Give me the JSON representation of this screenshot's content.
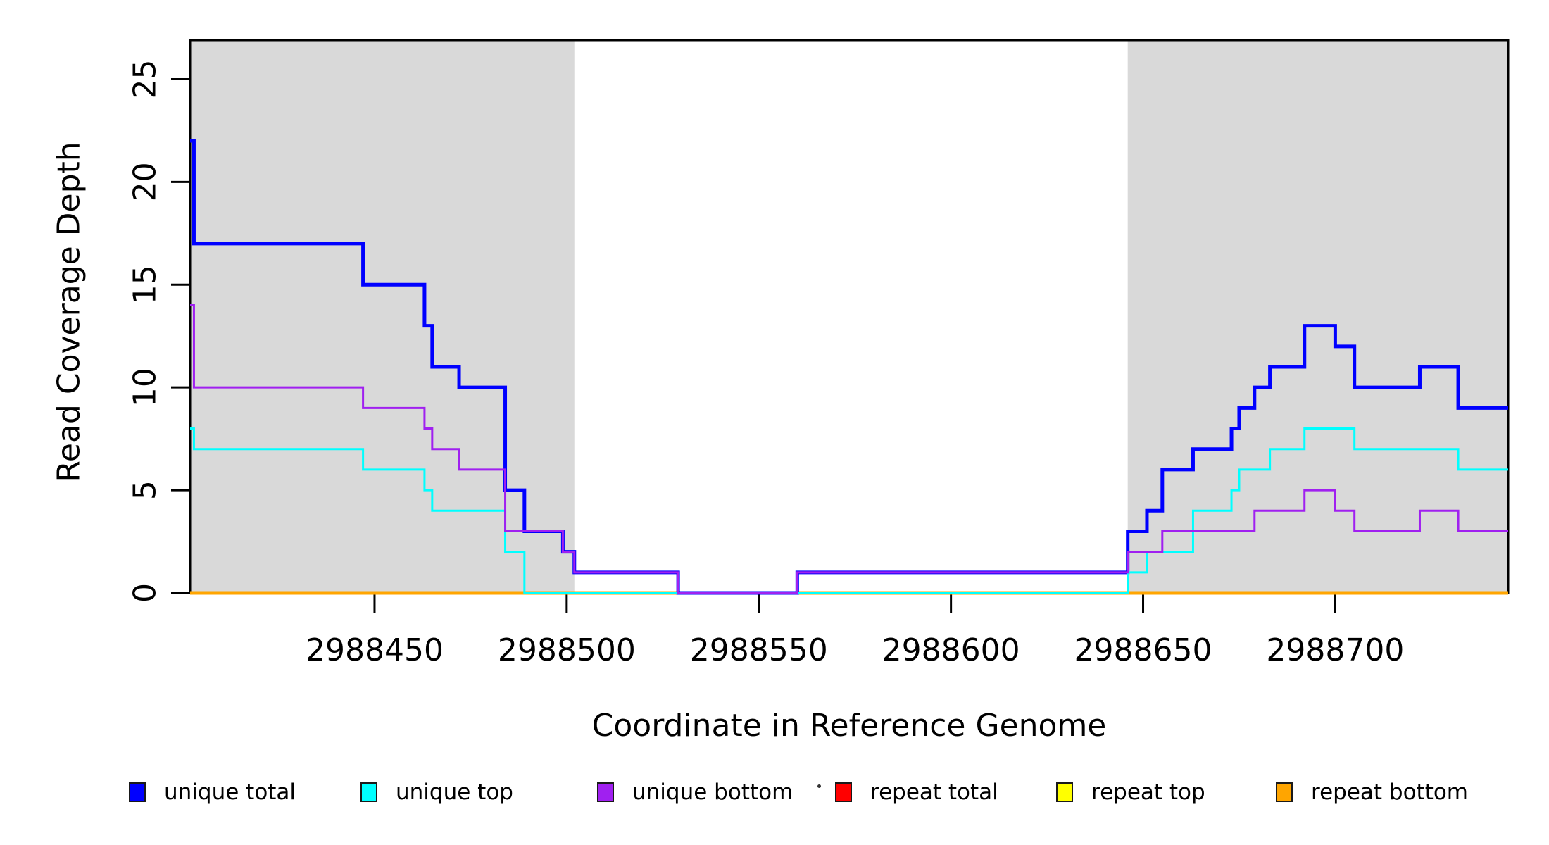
{
  "chart_data": {
    "type": "line",
    "subtype": "step",
    "title": "",
    "xlabel": "Coordinate in Reference Genome",
    "ylabel": "Read Coverage Depth",
    "xlim": [
      2988402,
      2988745
    ],
    "ylim": [
      0,
      26.9
    ],
    "x_ticks": [
      2988450,
      2988500,
      2988550,
      2988600,
      2988650,
      2988700
    ],
    "y_ticks": [
      0,
      5,
      10,
      15,
      20,
      25
    ],
    "grid": false,
    "legend_position": "bottom",
    "shaded_regions": [
      {
        "x_start": 2988402,
        "x_end": 2988502,
        "color": "#d9d9d9"
      },
      {
        "x_start": 2988646,
        "x_end": 2988745,
        "color": "#d9d9d9"
      }
    ],
    "series": [
      {
        "name": "repeat total",
        "color": "#ff0000",
        "line_width": 4,
        "steps": [
          [
            2988402,
            0
          ],
          [
            2988745,
            0
          ]
        ]
      },
      {
        "name": "repeat top",
        "color": "#ffff00",
        "line_width": 4,
        "steps": [
          [
            2988402,
            0
          ],
          [
            2988745,
            0
          ]
        ]
      },
      {
        "name": "repeat bottom",
        "color": "#ffa500",
        "line_width": 5,
        "steps": [
          [
            2988402,
            0
          ],
          [
            2988745,
            0
          ]
        ]
      },
      {
        "name": "unique total",
        "color": "#0000ff",
        "line_width": 5,
        "steps": [
          [
            2988402,
            22
          ],
          [
            2988403,
            17
          ],
          [
            2988447,
            15
          ],
          [
            2988463,
            13
          ],
          [
            2988465,
            11
          ],
          [
            2988472,
            10
          ],
          [
            2988484,
            5
          ],
          [
            2988489,
            3
          ],
          [
            2988499,
            2
          ],
          [
            2988502,
            1
          ],
          [
            2988529,
            0
          ],
          [
            2988560,
            1
          ],
          [
            2988646,
            3
          ],
          [
            2988651,
            4
          ],
          [
            2988655,
            6
          ],
          [
            2988663,
            7
          ],
          [
            2988673,
            8
          ],
          [
            2988675,
            9
          ],
          [
            2988679,
            10
          ],
          [
            2988683,
            11
          ],
          [
            2988692,
            13
          ],
          [
            2988700,
            12
          ],
          [
            2988705,
            10
          ],
          [
            2988722,
            11
          ],
          [
            2988732,
            9
          ],
          [
            2988745,
            9
          ]
        ]
      },
      {
        "name": "unique top",
        "color": "#00ffff",
        "line_width": 3,
        "steps": [
          [
            2988402,
            8
          ],
          [
            2988403,
            7
          ],
          [
            2988447,
            6
          ],
          [
            2988463,
            5
          ],
          [
            2988465,
            4
          ],
          [
            2988484,
            2
          ],
          [
            2988489,
            0
          ],
          [
            2988646,
            1
          ],
          [
            2988651,
            2
          ],
          [
            2988663,
            4
          ],
          [
            2988673,
            5
          ],
          [
            2988675,
            6
          ],
          [
            2988683,
            7
          ],
          [
            2988692,
            8
          ],
          [
            2988705,
            7
          ],
          [
            2988732,
            6
          ],
          [
            2988745,
            6
          ]
        ]
      },
      {
        "name": "unique bottom",
        "color": "#a020f0",
        "line_width": 3,
        "steps": [
          [
            2988402,
            14
          ],
          [
            2988403,
            10
          ],
          [
            2988447,
            9
          ],
          [
            2988463,
            8
          ],
          [
            2988465,
            7
          ],
          [
            2988472,
            6
          ],
          [
            2988484,
            3
          ],
          [
            2988499,
            2
          ],
          [
            2988502,
            1
          ],
          [
            2988529,
            0
          ],
          [
            2988560,
            1
          ],
          [
            2988646,
            2
          ],
          [
            2988655,
            3
          ],
          [
            2988679,
            4
          ],
          [
            2988692,
            5
          ],
          [
            2988700,
            4
          ],
          [
            2988705,
            3
          ],
          [
            2988722,
            4
          ],
          [
            2988732,
            3
          ],
          [
            2988745,
            3
          ]
        ]
      }
    ],
    "legend": {
      "items": [
        {
          "label": "unique total",
          "color": "#0000ff"
        },
        {
          "label": "unique top",
          "color": "#00ffff"
        },
        {
          "label": "unique bottom",
          "color": "#a020f0"
        },
        {
          "label": "repeat total",
          "color": "#ff0000"
        },
        {
          "label": "repeat top",
          "color": "#ffff00"
        },
        {
          "label": "repeat bottom",
          "color": "#ffa500"
        }
      ]
    }
  },
  "axes": {
    "x_label": "Coordinate in Reference Genome",
    "y_label": "Read Coverage Depth"
  }
}
